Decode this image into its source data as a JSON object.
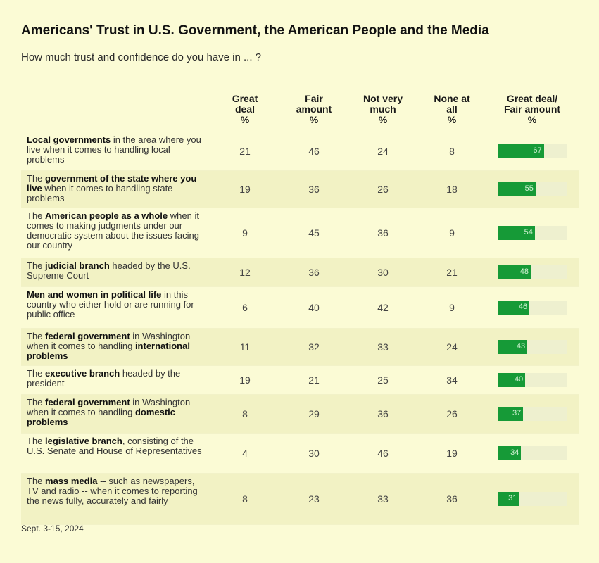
{
  "title": "Americans' Trust in U.S. Government, the American People and the Media",
  "subtitle": "How much trust and confidence do you have in ... ?",
  "footnote": "Sept. 3-15, 2024",
  "columns": [
    {
      "lines": [
        "Great",
        "deal",
        "%"
      ]
    },
    {
      "lines": [
        "Fair",
        "amount",
        "%"
      ]
    },
    {
      "lines": [
        "Not very",
        "much",
        "%"
      ]
    },
    {
      "lines": [
        "None at",
        "all",
        "%"
      ]
    },
    {
      "lines": [
        "Great deal/",
        "Fair amount",
        "%"
      ]
    }
  ],
  "colors": {
    "bar": "#169a37",
    "track": "#eef0cf",
    "background": "#fbfbd5"
  },
  "chart_data": {
    "type": "table",
    "title": "Americans' Trust in U.S. Government, the American People and the Media",
    "subtitle": "How much trust and confidence do you have in ... ?",
    "columns": [
      "Great deal %",
      "Fair amount %",
      "Not very much %",
      "None at all %",
      "Great deal/Fair amount %"
    ],
    "bar_max": 100,
    "rows": [
      {
        "label_parts": [
          {
            "text": "Local governments",
            "bold": true
          },
          {
            "text": " in the area where you live when it comes to handling local problems",
            "bold": false
          }
        ],
        "great_deal": 21,
        "fair_amount": 46,
        "not_very_much": 24,
        "none_at_all": 8,
        "combined": 67
      },
      {
        "label_parts": [
          {
            "text": "The ",
            "bold": false
          },
          {
            "text": "government of the state where you live",
            "bold": true
          },
          {
            "text": " when it comes to handling state problems",
            "bold": false
          }
        ],
        "great_deal": 19,
        "fair_amount": 36,
        "not_very_much": 26,
        "none_at_all": 18,
        "combined": 55
      },
      {
        "label_parts": [
          {
            "text": "The ",
            "bold": false
          },
          {
            "text": "American people as a whole",
            "bold": true
          },
          {
            "text": " when it comes to making judgments under our democratic system about the issues facing our country",
            "bold": false
          }
        ],
        "great_deal": 9,
        "fair_amount": 45,
        "not_very_much": 36,
        "none_at_all": 9,
        "combined": 54
      },
      {
        "label_parts": [
          {
            "text": "The ",
            "bold": false
          },
          {
            "text": "judicial branch",
            "bold": true
          },
          {
            "text": " headed by the U.S. Supreme Court",
            "bold": false
          }
        ],
        "great_deal": 12,
        "fair_amount": 36,
        "not_very_much": 30,
        "none_at_all": 21,
        "combined": 48
      },
      {
        "label_parts": [
          {
            "text": "Men and women in political life",
            "bold": true
          },
          {
            "text": " in this country who either hold or are running for public office",
            "bold": false
          }
        ],
        "great_deal": 6,
        "fair_amount": 40,
        "not_very_much": 42,
        "none_at_all": 9,
        "combined": 46
      },
      {
        "label_parts": [
          {
            "text": "The ",
            "bold": false
          },
          {
            "text": "federal government",
            "bold": true
          },
          {
            "text": " in Washington when it comes to handling ",
            "bold": false
          },
          {
            "text": "international problems",
            "bold": true
          }
        ],
        "great_deal": 11,
        "fair_amount": 32,
        "not_very_much": 33,
        "none_at_all": 24,
        "combined": 43
      },
      {
        "label_parts": [
          {
            "text": "The ",
            "bold": false
          },
          {
            "text": "executive branch",
            "bold": true
          },
          {
            "text": " headed by the president",
            "bold": false
          }
        ],
        "great_deal": 19,
        "fair_amount": 21,
        "not_very_much": 25,
        "none_at_all": 34,
        "combined": 40
      },
      {
        "label_parts": [
          {
            "text": "The ",
            "bold": false
          },
          {
            "text": "federal government",
            "bold": true
          },
          {
            "text": " in Washington when it comes to handling ",
            "bold": false
          },
          {
            "text": "domestic problems",
            "bold": true
          }
        ],
        "great_deal": 8,
        "fair_amount": 29,
        "not_very_much": 36,
        "none_at_all": 26,
        "combined": 37
      },
      {
        "label_parts": [
          {
            "text": "The ",
            "bold": false
          },
          {
            "text": "legislative branch",
            "bold": true
          },
          {
            "text": ", consisting of the U.S. Senate and House of Representatives",
            "bold": false
          }
        ],
        "great_deal": 4,
        "fair_amount": 30,
        "not_very_much": 46,
        "none_at_all": 19,
        "combined": 34
      },
      {
        "label_parts": [
          {
            "text": "The ",
            "bold": false
          },
          {
            "text": "mass media",
            "bold": true
          },
          {
            "text": " -- such as newspapers, TV and radio -- when it comes to reporting the news fully, accurately and fairly",
            "bold": false
          }
        ],
        "great_deal": 8,
        "fair_amount": 23,
        "not_very_much": 33,
        "none_at_all": 36,
        "combined": 31
      }
    ]
  }
}
